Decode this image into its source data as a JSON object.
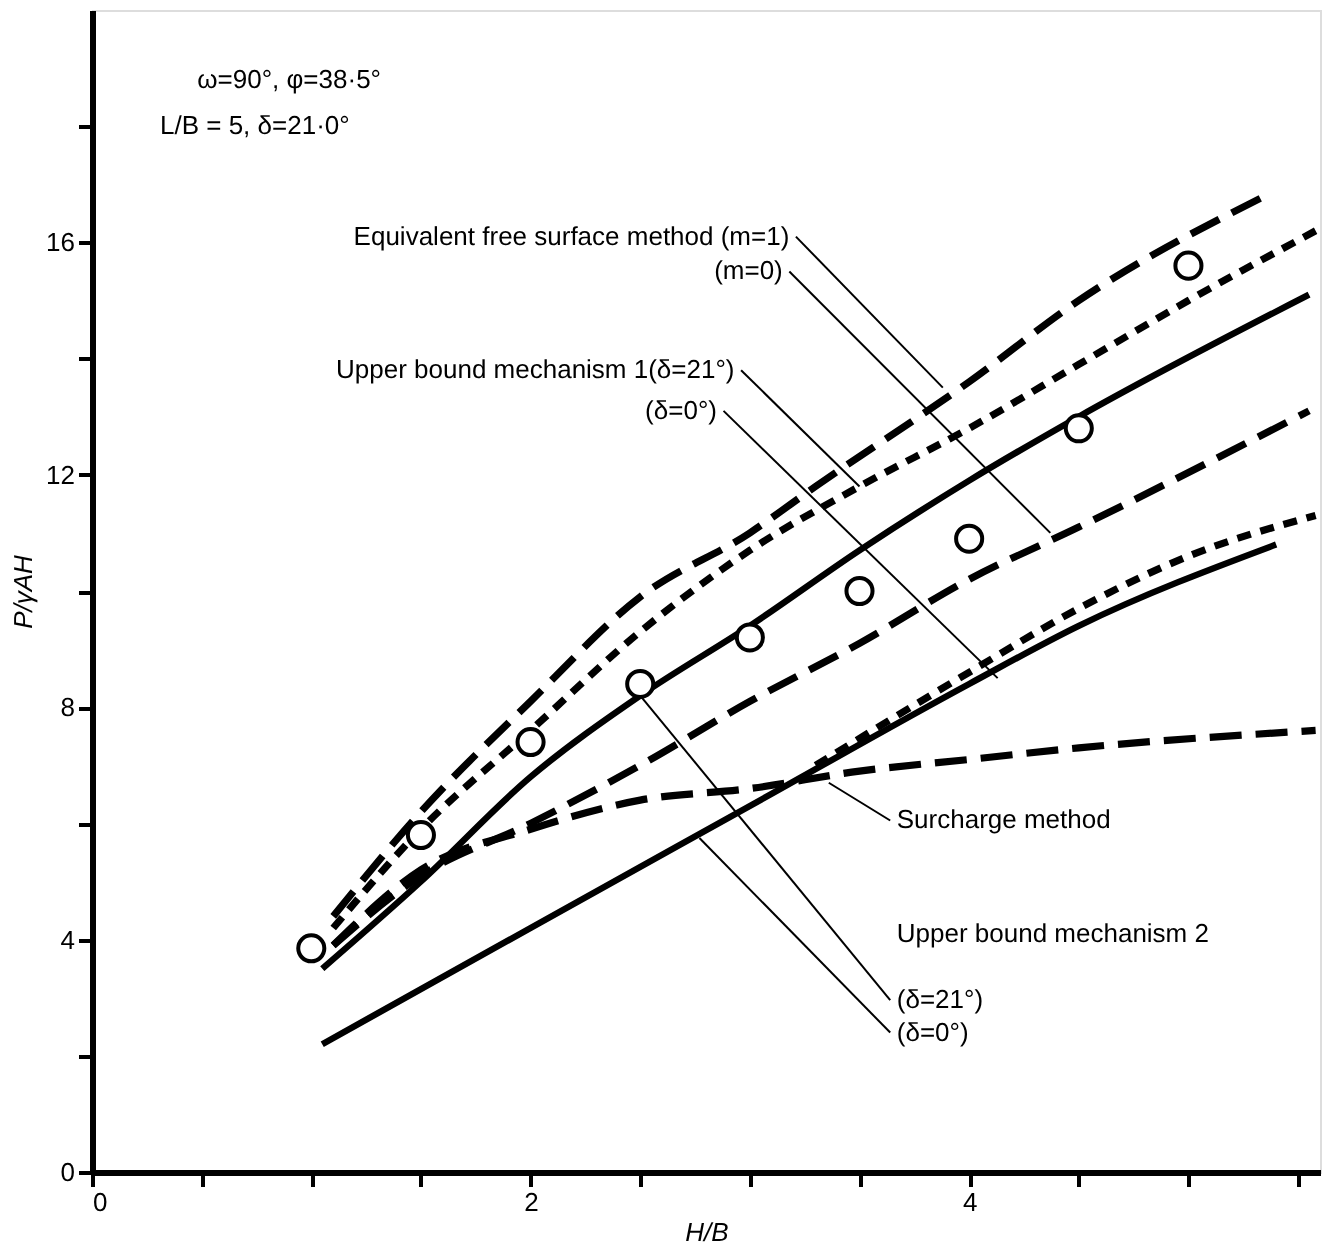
{
  "chart_data": {
    "type": "line",
    "xlabel": "H/B",
    "ylabel": "P/γAH",
    "xlim": [
      0,
      5.6
    ],
    "ylim": [
      0,
      20
    ],
    "xticks": [
      0,
      {
        "value": 0.5,
        "label": null
      },
      {
        "value": 1,
        "label": null
      },
      {
        "value": 1.5,
        "label": null
      },
      2,
      {
        "value": 2.5,
        "label": null
      },
      {
        "value": 3,
        "label": null
      },
      {
        "value": 3.5,
        "label": null
      },
      4,
      {
        "value": 4.5,
        "label": null
      },
      {
        "value": 5,
        "label": null
      },
      {
        "value": 5.5,
        "label": null
      }
    ],
    "yticks": [
      0,
      {
        "value": 2,
        "label": null
      },
      4,
      {
        "value": 6,
        "label": null
      },
      8,
      {
        "value": 10,
        "label": null
      },
      12,
      {
        "value": 14,
        "label": null
      },
      16,
      {
        "value": 18,
        "label": null
      }
    ],
    "grid": false,
    "legend": "top left",
    "series": [
      {
        "color": "#000000",
        "line_style": "dashed",
        "marker": "none",
        "x": [
          1.1,
          1.5,
          2,
          2.5,
          3,
          3.3,
          4,
          4.5,
          5.35
        ],
        "values": [
          4.4,
          6.2,
          8.1,
          9.9,
          11.0,
          11.8,
          13.6,
          15.0,
          16.8
        ]
      },
      {
        "color": "#000000",
        "line_style": "dotted",
        "marker": "none",
        "x": [
          1.1,
          1.5,
          2,
          2.5,
          3,
          3.5,
          4,
          4.5,
          5,
          5.58
        ],
        "values": [
          4.2,
          5.9,
          7.6,
          9.3,
          10.7,
          11.8,
          12.8,
          13.9,
          15.0,
          16.2
        ]
      },
      {
        "color": "#000000",
        "line_style": "solid",
        "marker": "none",
        "x": [
          1.05,
          1.5,
          2,
          2.5,
          3,
          3.5,
          4,
          4.5,
          5.55
        ],
        "values": [
          3.5,
          5.0,
          6.8,
          8.2,
          9.4,
          10.7,
          11.9,
          13.0,
          15.1
        ]
      },
      {
        "color": "#000000",
        "line_style": "dashed",
        "marker": "none",
        "x": [
          1.1,
          1.5,
          2,
          2.5,
          3,
          3.5,
          4,
          4.5,
          5.55
        ],
        "values": [
          3.9,
          5.1,
          6.0,
          7.0,
          8.1,
          9.1,
          10.2,
          11.1,
          13.1
        ]
      },
      {
        "color": "#000000",
        "line_style": "dashed",
        "marker": "none",
        "x": [
          1.1,
          1.5,
          2,
          2.5,
          3,
          3.5,
          4,
          4.5,
          5.58
        ],
        "values": [
          3.9,
          5.2,
          5.9,
          6.4,
          6.6,
          6.9,
          7.1,
          7.3,
          7.6
        ]
      },
      {
        "color": "#000000",
        "line_style": "dotted",
        "marker": "none",
        "x": [
          3.3,
          4,
          4.5,
          5,
          5.58
        ],
        "values": [
          7.0,
          8.6,
          9.7,
          10.6,
          11.3
        ]
      },
      {
        "color": "#000000",
        "line_style": "solid",
        "marker": "none",
        "x": [
          1.05,
          2,
          3,
          4,
          4.5,
          5.4
        ],
        "values": [
          2.2,
          4.2,
          6.3,
          8.4,
          9.4,
          10.8
        ]
      },
      {
        "type": "scatter",
        "name": "L/B = 5, δ=21·0°",
        "color": "#000000",
        "marker": "circle",
        "x": [
          1,
          1.5,
          2,
          2.5,
          3,
          3.5,
          4,
          4.5,
          5
        ],
        "values": [
          3.85,
          5.8,
          7.4,
          8.4,
          9.2,
          10.0,
          10.9,
          12.8,
          15.6
        ]
      }
    ],
    "annotations": [
      "ω=90°, φ=38·5°",
      {
        "text": "Equivalent free surface method  (m=1)",
        "x": 3.88,
        "y": 13.5
      },
      {
        "text": "(m=0)",
        "x": 4.37,
        "y": 11.0
      },
      {
        "text": "Upper bound mechanism 1(δ=21°)",
        "x": 3.5,
        "y": 11.8
      },
      {
        "text": "(δ=0°)",
        "x": 4.13,
        "y": 8.5
      },
      {
        "text": "Surcharge method",
        "x": 3.36,
        "y": 6.7
      },
      "Upper bound mechanism 2",
      {
        "text": "(δ=21°)",
        "x": 2.5,
        "y": 8.2
      },
      {
        "text": "(δ=0°)",
        "x": 2.77,
        "y": 5.75
      }
    ]
  }
}
